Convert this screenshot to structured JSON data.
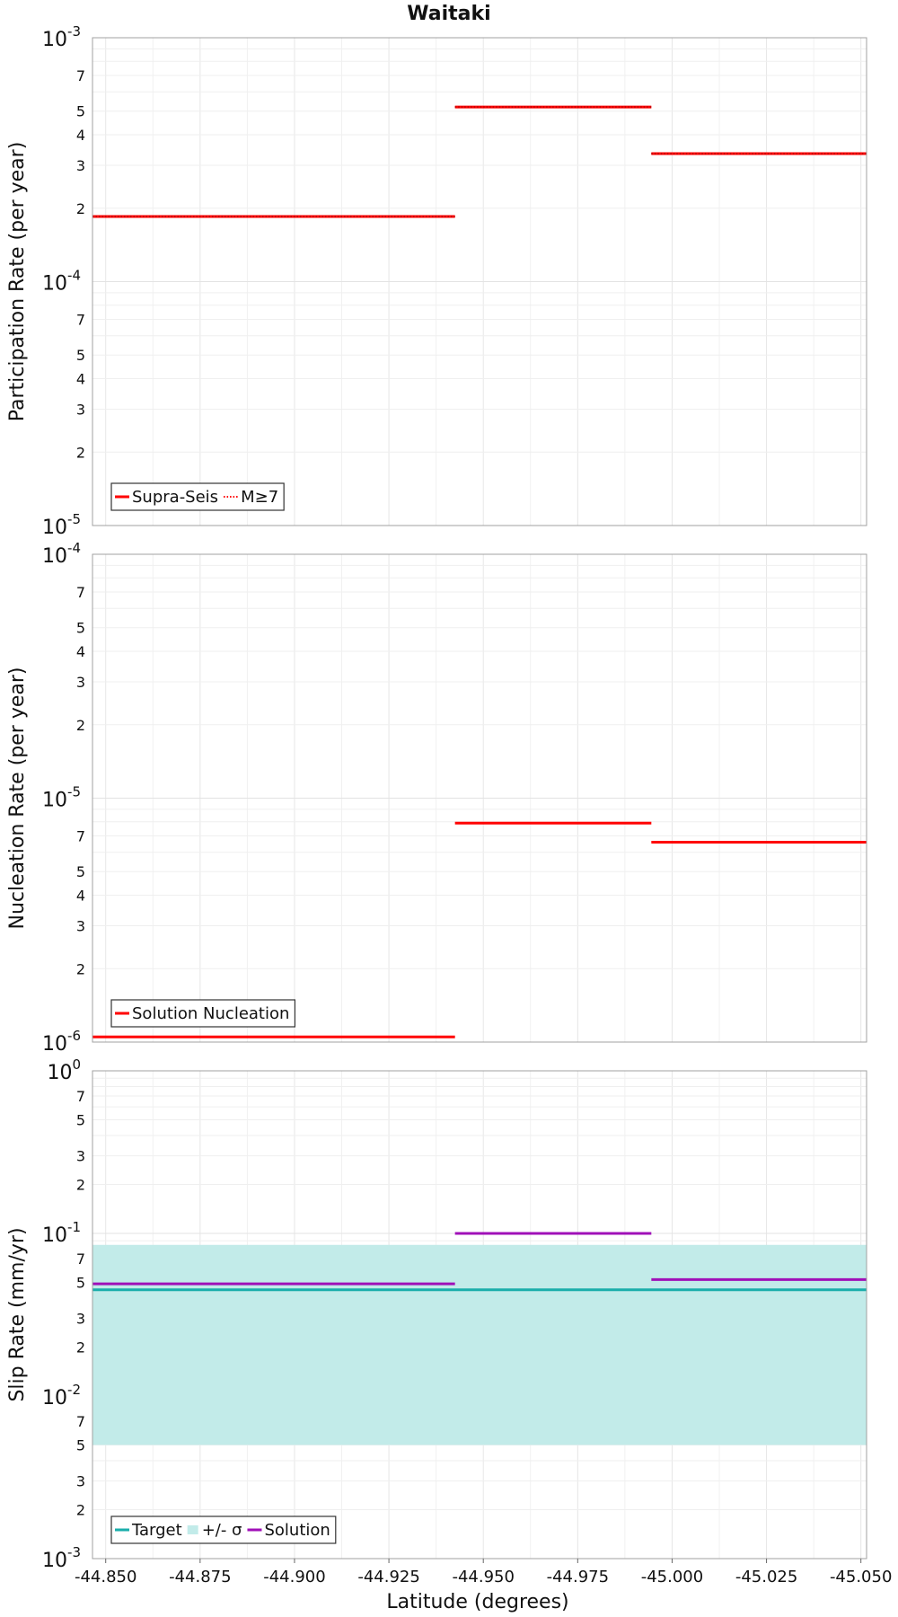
{
  "title": "Waitaki",
  "xlabel": "Latitude (degrees)",
  "x_tick_labels": [
    "-44.850",
    "-44.875",
    "-44.900",
    "-44.925",
    "-44.950",
    "-44.975",
    "-45.000",
    "-45.025",
    "-45.050"
  ],
  "chart_data": [
    {
      "type": "line",
      "panel": "participation",
      "ylabel": "Participation Rate (per year)",
      "yscale": "log",
      "ylim": [
        1e-05,
        0.001
      ],
      "xlim": [
        -44.8465,
        -45.0515
      ],
      "major_ticks": [
        {
          "base": "10",
          "exp": "-5"
        },
        {
          "base": "10",
          "exp": "-4"
        },
        {
          "base": "10",
          "exp": "-3"
        }
      ],
      "minor_tick_labels": [
        "2",
        "3",
        "4",
        "5",
        "7"
      ],
      "series": [
        {
          "name": "Supra-Seis",
          "color": "#ff0000",
          "style": "solid",
          "segments": [
            {
              "x0": -44.8465,
              "x1": -44.9425,
              "y": 0.000185
            },
            {
              "x0": -44.9425,
              "x1": -44.9945,
              "y": 0.00052
            },
            {
              "x0": -44.9945,
              "x1": -45.0515,
              "y": 0.000335
            }
          ]
        },
        {
          "name": "M≥7",
          "color": "#ff0000",
          "style": "dotted",
          "segments": [
            {
              "x0": -44.8465,
              "x1": -44.9425,
              "y": 0.000185
            },
            {
              "x0": -44.9425,
              "x1": -44.9945,
              "y": 0.00052
            },
            {
              "x0": -44.9945,
              "x1": -45.0515,
              "y": 0.000335
            }
          ]
        }
      ],
      "legend": [
        {
          "label": "Supra-Seis",
          "color": "#ff0000",
          "style": "solid"
        },
        {
          "label": "M≥7",
          "color": "#ff0000",
          "style": "dotted"
        }
      ]
    },
    {
      "type": "line",
      "panel": "nucleation",
      "ylabel": "Nucleation Rate (per year)",
      "yscale": "log",
      "ylim": [
        1e-06,
        0.0001
      ],
      "xlim": [
        -44.8465,
        -45.0515
      ],
      "major_ticks": [
        {
          "base": "10",
          "exp": "-6"
        },
        {
          "base": "10",
          "exp": "-5"
        },
        {
          "base": "10",
          "exp": "-4"
        }
      ],
      "minor_tick_labels": [
        "2",
        "3",
        "4",
        "5",
        "7"
      ],
      "series": [
        {
          "name": "Solution Nucleation",
          "color": "#ff0000",
          "style": "solid",
          "segments": [
            {
              "x0": -44.8465,
              "x1": -44.9425,
              "y": 1.05e-06
            },
            {
              "x0": -44.9425,
              "x1": -44.9945,
              "y": 7.9e-06
            },
            {
              "x0": -44.9945,
              "x1": -45.0515,
              "y": 6.6e-06
            }
          ]
        }
      ],
      "legend": [
        {
          "label": "Solution Nucleation",
          "color": "#ff0000",
          "style": "solid"
        }
      ]
    },
    {
      "type": "line",
      "panel": "slip",
      "ylabel": "Slip Rate (mm/yr)",
      "yscale": "log",
      "ylim": [
        0.001,
        1
      ],
      "xlim": [
        -44.8465,
        -45.0515
      ],
      "major_ticks": [
        {
          "base": "10",
          "exp": "-3"
        },
        {
          "base": "10",
          "exp": "-2"
        },
        {
          "base": "10",
          "exp": "-1"
        },
        {
          "base": "10",
          "exp": "0"
        }
      ],
      "minor_tick_labels": [
        "2",
        "3",
        "5",
        "7"
      ],
      "band": {
        "name": "+/- σ",
        "color": "#c2ebe9",
        "y0": 0.005,
        "y1": 0.085
      },
      "series": [
        {
          "name": "Target",
          "color": "#1aaeab",
          "style": "solid",
          "segments": [
            {
              "x0": -44.8465,
              "x1": -45.0515,
              "y": 0.045
            }
          ]
        },
        {
          "name": "Solution",
          "color": "#a010b8",
          "style": "solid",
          "segments": [
            {
              "x0": -44.8465,
              "x1": -44.9425,
              "y": 0.049
            },
            {
              "x0": -44.9425,
              "x1": -44.9945,
              "y": 0.1
            },
            {
              "x0": -44.9945,
              "x1": -45.0515,
              "y": 0.052
            }
          ]
        }
      ],
      "legend": [
        {
          "label": "Target",
          "color": "#1aaeab",
          "style": "solid"
        },
        {
          "label": "+/- σ",
          "color": "#c2ebe9",
          "style": "box"
        },
        {
          "label": "Solution",
          "color": "#a010b8",
          "style": "solid"
        }
      ]
    }
  ]
}
